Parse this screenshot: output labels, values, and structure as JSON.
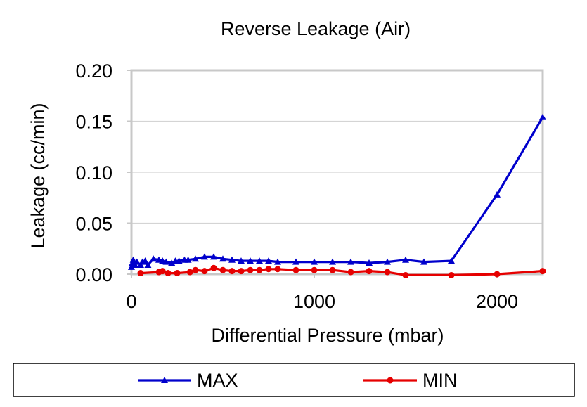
{
  "chart_data": {
    "type": "line",
    "title": "Reverse Leakage (Air)",
    "xlabel": "Differential Pressure (mbar)",
    "ylabel": "Leakage (cc/min)",
    "xlim": [
      0,
      2250
    ],
    "ylim": [
      0,
      0.2
    ],
    "xticks": [
      0,
      1000,
      2000
    ],
    "xtick_labels": [
      "0",
      "1000",
      "2000"
    ],
    "yticks": [
      0,
      0.05,
      0.1,
      0.15,
      0.2
    ],
    "ytick_labels": [
      "0.00",
      "0.05",
      "0.10",
      "0.15",
      "0.20"
    ],
    "grid": "horizontal",
    "legend_position": "bottom",
    "series": [
      {
        "name": "MAX",
        "color": "#0000cc",
        "marker": "triangle",
        "points": [
          [
            0,
            0.007
          ],
          [
            5,
            0.011
          ],
          [
            10,
            0.014
          ],
          [
            20,
            0.009
          ],
          [
            30,
            0.012
          ],
          [
            50,
            0.009
          ],
          [
            60,
            0.012
          ],
          [
            75,
            0.013
          ],
          [
            90,
            0.009
          ],
          [
            120,
            0.015
          ],
          [
            150,
            0.014
          ],
          [
            170,
            0.013
          ],
          [
            190,
            0.012
          ],
          [
            220,
            0.011
          ],
          [
            240,
            0.013
          ],
          [
            260,
            0.013
          ],
          [
            290,
            0.014
          ],
          [
            310,
            0.014
          ],
          [
            350,
            0.015
          ],
          [
            400,
            0.017
          ],
          [
            450,
            0.017
          ],
          [
            500,
            0.015
          ],
          [
            550,
            0.014
          ],
          [
            600,
            0.013
          ],
          [
            650,
            0.013
          ],
          [
            700,
            0.013
          ],
          [
            750,
            0.013
          ],
          [
            800,
            0.012
          ],
          [
            900,
            0.012
          ],
          [
            1000,
            0.012
          ],
          [
            1100,
            0.012
          ],
          [
            1200,
            0.012
          ],
          [
            1300,
            0.011
          ],
          [
            1400,
            0.012
          ],
          [
            1500,
            0.014
          ],
          [
            1600,
            0.012
          ],
          [
            1750,
            0.013
          ],
          [
            2000,
            0.078
          ],
          [
            2250,
            0.154
          ]
        ]
      },
      {
        "name": "MIN",
        "color": "#e60000",
        "marker": "circle",
        "points": [
          [
            50,
            0.001
          ],
          [
            150,
            0.002
          ],
          [
            170,
            0.003
          ],
          [
            200,
            0.001
          ],
          [
            250,
            0.001
          ],
          [
            320,
            0.002
          ],
          [
            350,
            0.004
          ],
          [
            400,
            0.003
          ],
          [
            450,
            0.006
          ],
          [
            500,
            0.004
          ],
          [
            550,
            0.003
          ],
          [
            600,
            0.003
          ],
          [
            650,
            0.004
          ],
          [
            700,
            0.004
          ],
          [
            750,
            0.005
          ],
          [
            800,
            0.005
          ],
          [
            900,
            0.004
          ],
          [
            1000,
            0.004
          ],
          [
            1100,
            0.004
          ],
          [
            1200,
            0.002
          ],
          [
            1300,
            0.003
          ],
          [
            1400,
            0.002
          ],
          [
            1500,
            -0.001
          ],
          [
            1750,
            -0.001
          ],
          [
            2000,
            0.0
          ],
          [
            2250,
            0.003
          ]
        ]
      }
    ]
  }
}
